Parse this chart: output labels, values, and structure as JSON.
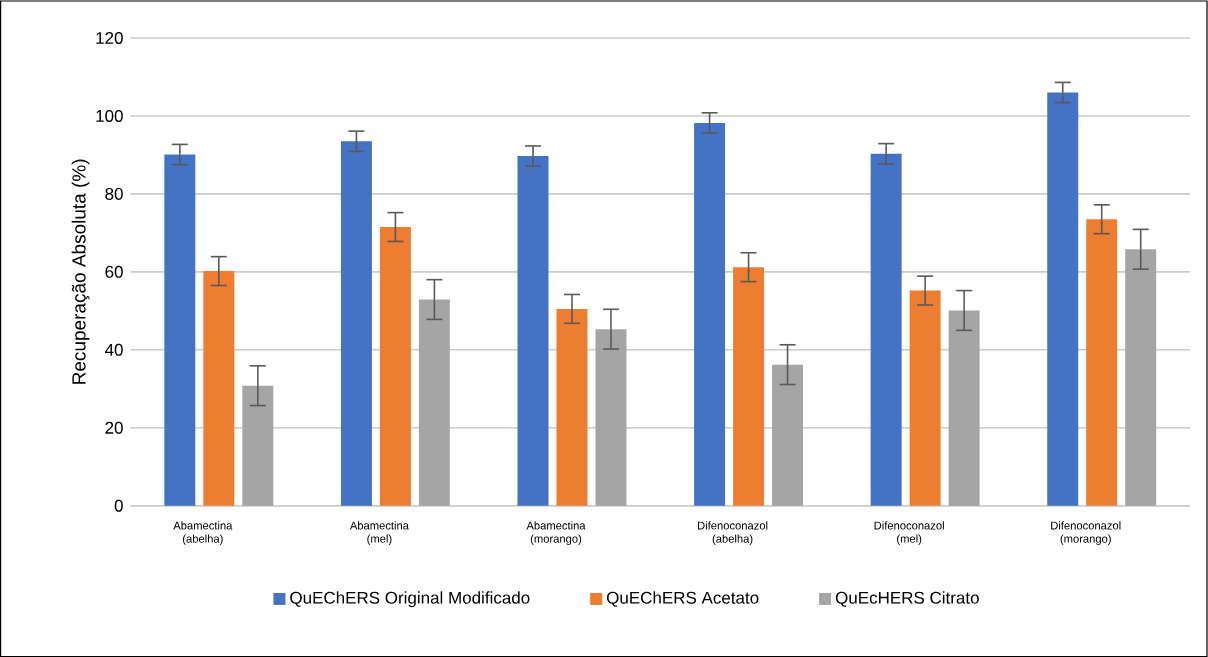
{
  "chart_data": {
    "type": "bar",
    "ylabel": "Recuperação Absoluta (%)",
    "categories": [
      "Abamectina (abelha)",
      "Abamectina (mel)",
      "Abamectina (morango)",
      "Difenoconazol (abelha)",
      "Difenoconazol (mel)",
      "Difenoconazol (morango)"
    ],
    "series": [
      {
        "name": "QuEChERS Original Modificado",
        "color": "#4472c4",
        "values": [
          90.1,
          93.5,
          89.7,
          98.2,
          90.3,
          106.0
        ],
        "errors": [
          2.6,
          2.6,
          2.6,
          2.6,
          2.6,
          2.6
        ]
      },
      {
        "name": "QuEChERS Acetato",
        "color": "#ed7d31",
        "values": [
          60.2,
          71.5,
          50.5,
          61.2,
          55.2,
          73.5
        ],
        "errors": [
          3.7,
          3.7,
          3.7,
          3.7,
          3.7,
          3.7
        ]
      },
      {
        "name": "QuEcHERS Citrato",
        "color": "#a5a5a5",
        "values": [
          30.8,
          52.9,
          45.3,
          36.2,
          50.1,
          65.8
        ],
        "errors": [
          5.1,
          5.1,
          5.1,
          5.1,
          5.1,
          5.1
        ]
      }
    ],
    "ylim": [
      0,
      120
    ],
    "yticks": [
      0,
      20,
      40,
      60,
      80,
      100,
      120
    ],
    "grid": "y",
    "legend": "bottom"
  }
}
